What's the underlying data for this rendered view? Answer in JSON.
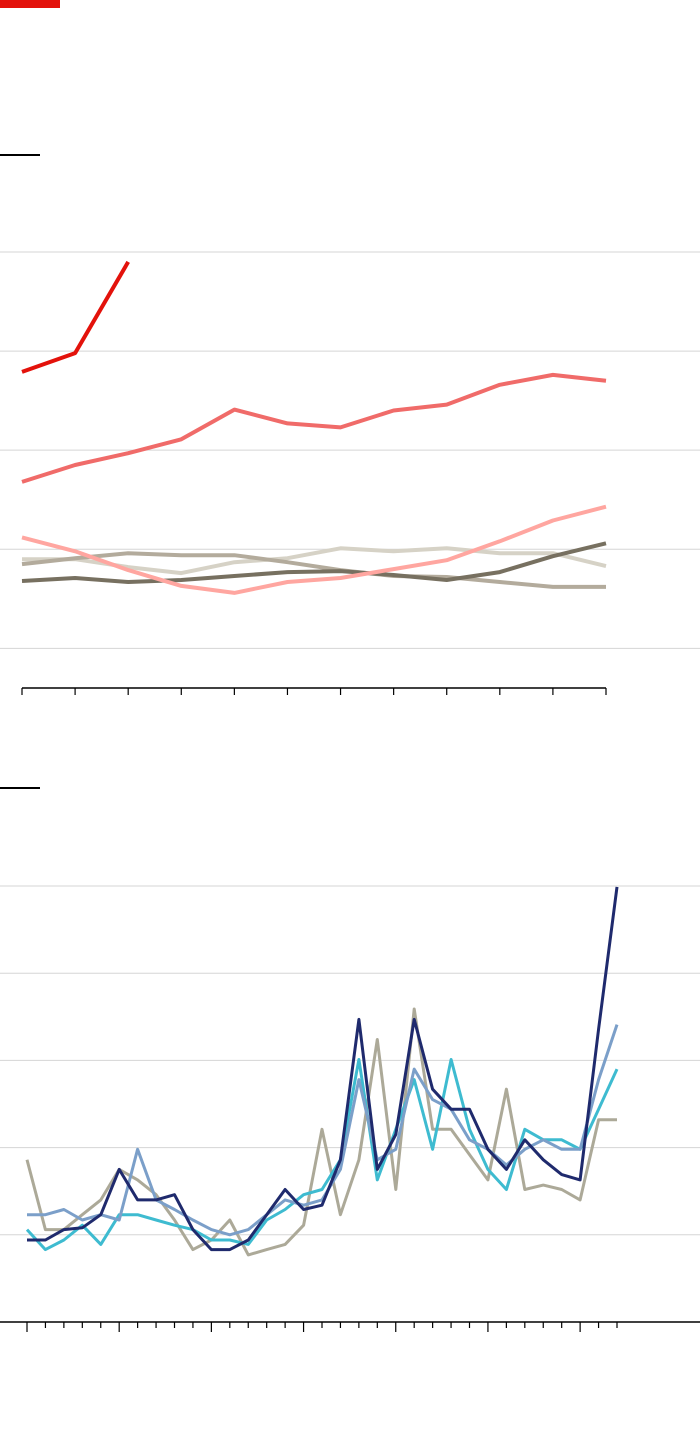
{
  "chart_data": [
    {
      "type": "line",
      "categories": [
        null,
        null,
        null,
        null,
        null,
        null,
        null,
        null,
        null,
        null,
        null,
        null
      ],
      "ylim": [
        -0.4,
        4
      ],
      "yticks": [
        0,
        1,
        2,
        3,
        4
      ],
      "grid": true,
      "series": [
        {
          "color": "#d6d2c6",
          "values": [
            0.9,
            0.9,
            0.82,
            0.76,
            0.87,
            0.91,
            1.01,
            0.98,
            1.01,
            0.96,
            0.96,
            0.83
          ]
        },
        {
          "color": "#b3ab9c",
          "values": [
            0.85,
            0.91,
            0.96,
            0.94,
            0.94,
            0.87,
            0.79,
            0.73,
            0.72,
            0.67,
            0.62,
            0.62
          ]
        },
        {
          "color": "#777060",
          "values": [
            0.68,
            0.71,
            0.67,
            0.69,
            0.73,
            0.77,
            0.78,
            0.74,
            0.69,
            0.77,
            0.93,
            1.06
          ]
        },
        {
          "color": "#ffa6a0",
          "values": [
            1.12,
            0.98,
            0.79,
            0.63,
            0.56,
            0.67,
            0.71,
            0.8,
            0.89,
            1.08,
            1.29,
            1.43
          ]
        },
        {
          "color": "#f06b69",
          "values": [
            1.68,
            1.85,
            1.97,
            2.11,
            2.41,
            2.27,
            2.23,
            2.4,
            2.46,
            2.66,
            2.76,
            2.7
          ]
        },
        {
          "color": "#e3120b",
          "values": [
            2.79,
            2.98,
            3.9,
            null,
            null,
            null,
            null,
            null,
            null,
            null,
            null,
            null
          ]
        }
      ]
    },
    {
      "type": "line",
      "x": [
        0,
        2,
        4,
        6,
        8,
        10,
        12,
        14,
        16,
        18,
        20,
        22,
        24,
        26,
        28,
        30,
        32,
        34,
        36,
        38,
        40,
        42,
        44,
        46,
        48,
        50,
        52,
        54,
        56,
        58,
        60,
        62,
        64
      ],
      "xlim": [
        0,
        64
      ],
      "xticks": [
        0,
        2,
        4,
        6,
        8,
        10,
        12,
        14,
        16,
        18,
        20,
        22,
        24,
        26,
        28,
        30,
        32,
        34,
        36,
        38,
        40,
        42,
        44,
        46,
        48,
        50,
        52,
        54,
        56,
        58,
        60,
        62,
        64
      ],
      "ylim": [
        -1,
        4
      ],
      "yticks": [
        0,
        1,
        2,
        3,
        4
      ],
      "grid": true,
      "series": [
        {
          "color": "#aca998",
          "values": [
            0.86,
            0.06,
            0.06,
            0.23,
            0.4,
            0.75,
            0.63,
            0.46,
            0.17,
            -0.17,
            -0.06,
            0.17,
            -0.23,
            -0.17,
            -0.11,
            0.11,
            1.21,
            0.23,
            0.86,
            2.24,
            0.52,
            2.59,
            1.21,
            1.21,
            0.92,
            0.63,
            1.67,
            0.52,
            0.57,
            0.52,
            0.4,
            1.32,
            1.32
          ]
        },
        {
          "color": "#3ebbd0",
          "values": [
            0.06,
            -0.17,
            -0.06,
            0.11,
            -0.11,
            0.23,
            0.23,
            0.17,
            0.11,
            0.06,
            -0.06,
            -0.06,
            -0.11,
            0.17,
            0.29,
            0.46,
            0.52,
            0.86,
            2.01,
            0.63,
            1.21,
            1.78,
            0.98,
            2.01,
            1.21,
            0.75,
            0.52,
            1.21,
            1.09,
            1.09,
            0.98,
            1.44,
            1.9
          ]
        },
        {
          "color": "#7b9fc9",
          "values": [
            0.23,
            0.23,
            0.29,
            0.17,
            0.23,
            0.17,
            0.98,
            0.4,
            0.29,
            0.17,
            0.06,
            0,
            0.06,
            0.23,
            0.4,
            0.34,
            0.4,
            0.75,
            1.78,
            0.86,
            0.98,
            1.9,
            1.55,
            1.44,
            1.09,
            0.98,
            0.8,
            0.98,
            1.09,
            0.98,
            0.98,
            1.78,
            2.41
          ]
        },
        {
          "color": "#1f2a6d",
          "values": [
            -0.06,
            -0.06,
            0.06,
            0.08,
            0.23,
            0.75,
            0.4,
            0.4,
            0.46,
            0.06,
            -0.17,
            -0.17,
            -0.06,
            0.23,
            0.52,
            0.29,
            0.34,
            0.86,
            2.47,
            0.75,
            1.15,
            2.47,
            1.67,
            1.44,
            1.44,
            0.98,
            0.75,
            1.09,
            0.86,
            0.69,
            0.63,
            2.36,
            3.99
          ]
        }
      ]
    }
  ]
}
